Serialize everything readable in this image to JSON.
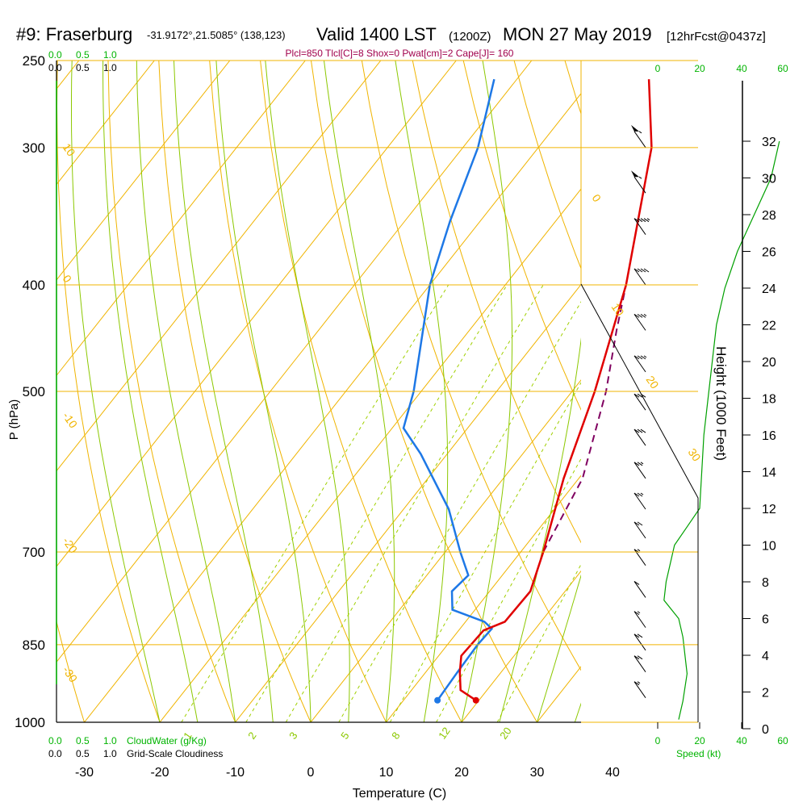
{
  "header": {
    "station": "#9: Fraserburg",
    "coords": "-31.9172°,21.5085° (138,123)",
    "valid": "Valid 1400 LST",
    "zulu": "(1200Z)",
    "date": "MON 27 May 2019",
    "fcst": "[12hrFcst@0437z]"
  },
  "params_line": "Plcl=850 Tlcl[C]=8 Shox=0 Pwat[cm]=2 Cape[J]= 160",
  "colors": {
    "isotherm": "#f0b400",
    "adiabat": "#8cc800",
    "mixing": "#a0d000",
    "temperature": "#e00000",
    "dewpoint": "#1e78e6",
    "parcel": "#800060",
    "green_label": "#00b400",
    "params": "#a0004c"
  },
  "cloud_scale": {
    "top_green": [
      "0.0",
      "0.5",
      "1.0"
    ],
    "top_black": [
      "0.0",
      "0.5",
      "1.0"
    ],
    "bottom_green": [
      "0.0",
      "0.5",
      "1.0"
    ],
    "bottom_black": [
      "0.0",
      "0.5",
      "1.0"
    ],
    "cloudwater_label": "CloudWater (g/Kg)",
    "cloudiness_label": "Grid-Scale Cloudiness"
  },
  "speed_scale": {
    "ticks": [
      "0",
      "20",
      "40",
      "60"
    ],
    "label": "Speed (kt)"
  },
  "chart_data": {
    "type": "skew-t",
    "xlabel": "Temperature (C)",
    "ylabel": "P (hPa)",
    "y2label": "Height (1000 Feet)",
    "x_ticks": [
      -30,
      -20,
      -10,
      0,
      10,
      20,
      30,
      40
    ],
    "p_ticks": [
      250,
      300,
      400,
      500,
      700,
      850,
      1000
    ],
    "height_ticks": [
      0,
      2,
      4,
      6,
      8,
      10,
      12,
      14,
      16,
      18,
      20,
      22,
      24,
      26,
      28,
      30,
      32
    ],
    "isotherm_labels": [
      "-30",
      "-20",
      "-10",
      "0",
      "10",
      "20",
      "30"
    ],
    "mixing_ratio_labels": [
      "1",
      "2",
      "3",
      "5",
      "8",
      "12",
      "20"
    ],
    "mixing_ratios": [
      1,
      2,
      3,
      5,
      8,
      12,
      20
    ],
    "temperature": [
      {
        "p": 955,
        "t": 19.6
      },
      {
        "p": 935,
        "t": 16.5
      },
      {
        "p": 900,
        "t": 14.5
      },
      {
        "p": 870,
        "t": 13.0
      },
      {
        "p": 825,
        "t": 13.3
      },
      {
        "p": 810,
        "t": 15.2
      },
      {
        "p": 760,
        "t": 15.4
      },
      {
        "p": 700,
        "t": 13.0
      },
      {
        "p": 600,
        "t": 8.0
      },
      {
        "p": 500,
        "t": 3.0
      },
      {
        "p": 400,
        "t": -4.0
      },
      {
        "p": 300,
        "t": -15.0
      },
      {
        "p": 260,
        "t": -22.5
      }
    ],
    "dewpoint": [
      {
        "p": 955,
        "t": 14.5
      },
      {
        "p": 900,
        "t": 14.2
      },
      {
        "p": 850,
        "t": 14.0
      },
      {
        "p": 822,
        "t": 14.2
      },
      {
        "p": 810,
        "t": 12.5
      },
      {
        "p": 790,
        "t": 7.0
      },
      {
        "p": 760,
        "t": 5.0
      },
      {
        "p": 735,
        "t": 5.5
      },
      {
        "p": 700,
        "t": 2.0
      },
      {
        "p": 640,
        "t": -4.0
      },
      {
        "p": 570,
        "t": -13.5
      },
      {
        "p": 540,
        "t": -18.5
      },
      {
        "p": 500,
        "t": -21.0
      },
      {
        "p": 400,
        "t": -30.0
      },
      {
        "p": 350,
        "t": -34.0
      },
      {
        "p": 300,
        "t": -38.0
      },
      {
        "p": 260,
        "t": -43.0
      }
    ],
    "parcel": [
      {
        "p": 700,
        "t": 13.0
      },
      {
        "p": 600,
        "t": 10.5
      },
      {
        "p": 500,
        "t": 4.5
      },
      {
        "p": 440,
        "t": -0.5
      },
      {
        "p": 400,
        "t": -4.0
      }
    ],
    "surface_temperature": 19.6,
    "surface_dewpoint": 14.5,
    "wind_profile_kt": [
      {
        "h": 0.5,
        "s": 10
      },
      {
        "h": 1.5,
        "s": 12
      },
      {
        "h": 3,
        "s": 14
      },
      {
        "h": 5,
        "s": 12
      },
      {
        "h": 6,
        "s": 10
      },
      {
        "h": 7,
        "s": 3
      },
      {
        "h": 8,
        "s": 4
      },
      {
        "h": 10,
        "s": 8
      },
      {
        "h": 11,
        "s": 14
      },
      {
        "h": 12,
        "s": 20
      },
      {
        "h": 14,
        "s": 21
      },
      {
        "h": 16,
        "s": 22
      },
      {
        "h": 18,
        "s": 24
      },
      {
        "h": 20,
        "s": 26
      },
      {
        "h": 22,
        "s": 28
      },
      {
        "h": 24,
        "s": 32
      },
      {
        "h": 26,
        "s": 38
      },
      {
        "h": 28,
        "s": 46
      },
      {
        "h": 30,
        "s": 54
      },
      {
        "h": 32,
        "s": 58
      }
    ],
    "wind_barbs": [
      {
        "p": 300,
        "kt": 55
      },
      {
        "p": 330,
        "kt": 55
      },
      {
        "p": 360,
        "kt": 45
      },
      {
        "p": 400,
        "kt": 40
      },
      {
        "p": 440,
        "kt": 35
      },
      {
        "p": 480,
        "kt": 35
      },
      {
        "p": 520,
        "kt": 30
      },
      {
        "p": 560,
        "kt": 30
      },
      {
        "p": 600,
        "kt": 25
      },
      {
        "p": 640,
        "kt": 25
      },
      {
        "p": 680,
        "kt": 20
      },
      {
        "p": 720,
        "kt": 15
      },
      {
        "p": 770,
        "kt": 10
      },
      {
        "p": 820,
        "kt": 15
      },
      {
        "p": 860,
        "kt": 20
      },
      {
        "p": 900,
        "kt": 20
      },
      {
        "p": 950,
        "kt": 15
      }
    ]
  }
}
